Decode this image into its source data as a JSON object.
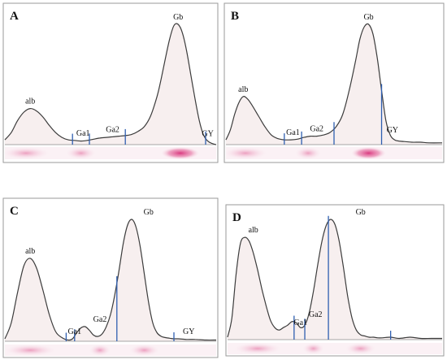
{
  "chart_data": [
    {
      "type": "line",
      "panel": "A",
      "x": [
        0,
        0.03,
        0.06,
        0.09,
        0.12,
        0.15,
        0.18,
        0.21,
        0.24,
        0.27,
        0.3,
        0.33,
        0.36,
        0.39,
        0.42,
        0.45,
        0.48,
        0.51,
        0.54,
        0.57,
        0.6,
        0.63,
        0.66,
        0.69,
        0.72,
        0.74,
        0.76,
        0.78,
        0.8,
        0.82,
        0.84,
        0.86,
        0.88,
        0.9,
        0.92,
        0.94,
        0.96,
        0.98,
        1.0
      ],
      "y": [
        0.04,
        0.1,
        0.2,
        0.27,
        0.3,
        0.28,
        0.23,
        0.16,
        0.1,
        0.06,
        0.04,
        0.035,
        0.03,
        0.035,
        0.045,
        0.055,
        0.06,
        0.065,
        0.07,
        0.075,
        0.085,
        0.11,
        0.15,
        0.24,
        0.4,
        0.55,
        0.72,
        0.88,
        0.99,
        1.0,
        0.93,
        0.78,
        0.58,
        0.38,
        0.2,
        0.08,
        0.03,
        0.01,
        0.0
      ],
      "dividers": [
        0.32,
        0.4,
        0.57,
        0.95
      ],
      "labels": [
        {
          "text": "alb",
          "x": 0.12,
          "y": 0.3
        },
        {
          "text": "Ga1",
          "x": 0.37,
          "y": 0.035
        },
        {
          "text": "Ga2",
          "x": 0.51,
          "y": 0.065
        },
        {
          "text": "Gb",
          "x": 0.82,
          "y": 1.0
        },
        {
          "text": "GY",
          "x": 0.96,
          "y": 0.03
        }
      ]
    },
    {
      "type": "line",
      "panel": "B",
      "x": [
        0,
        0.02,
        0.04,
        0.06,
        0.08,
        0.1,
        0.12,
        0.15,
        0.18,
        0.21,
        0.24,
        0.27,
        0.3,
        0.33,
        0.36,
        0.39,
        0.42,
        0.45,
        0.48,
        0.51,
        0.54,
        0.57,
        0.6,
        0.62,
        0.64,
        0.66,
        0.68,
        0.7,
        0.72,
        0.74,
        0.76,
        0.78,
        0.8,
        0.83,
        0.86,
        0.9,
        0.94,
        1.0
      ],
      "y": [
        0.04,
        0.12,
        0.25,
        0.35,
        0.4,
        0.38,
        0.33,
        0.24,
        0.15,
        0.08,
        0.05,
        0.04,
        0.04,
        0.045,
        0.06,
        0.07,
        0.07,
        0.08,
        0.1,
        0.15,
        0.25,
        0.45,
        0.7,
        0.88,
        0.98,
        1.0,
        0.92,
        0.72,
        0.45,
        0.2,
        0.08,
        0.04,
        0.03,
        0.025,
        0.02,
        0.02,
        0.015,
        0.015
      ],
      "dividers": [
        0.27,
        0.35,
        0.5,
        0.72
      ],
      "labels": [
        {
          "text": "alb",
          "x": 0.08,
          "y": 0.4
        },
        {
          "text": "Ga1",
          "x": 0.31,
          "y": 0.04
        },
        {
          "text": "Ga2",
          "x": 0.42,
          "y": 0.07
        },
        {
          "text": "Gb",
          "x": 0.66,
          "y": 1.0
        },
        {
          "text": "GY",
          "x": 0.77,
          "y": 0.06
        }
      ]
    },
    {
      "type": "line",
      "panel": "C",
      "x": [
        0,
        0.03,
        0.06,
        0.09,
        0.12,
        0.15,
        0.18,
        0.21,
        0.24,
        0.27,
        0.3,
        0.32,
        0.34,
        0.36,
        0.38,
        0.4,
        0.42,
        0.44,
        0.46,
        0.48,
        0.5,
        0.52,
        0.54,
        0.56,
        0.58,
        0.6,
        0.62,
        0.64,
        0.66,
        0.68,
        0.7,
        0.72,
        0.74,
        0.76,
        0.78,
        0.8,
        0.82,
        0.86,
        0.9,
        0.95,
        1.0
      ],
      "y": [
        0.02,
        0.15,
        0.4,
        0.62,
        0.68,
        0.6,
        0.42,
        0.22,
        0.08,
        0.03,
        0.01,
        0.02,
        0.07,
        0.11,
        0.12,
        0.09,
        0.05,
        0.04,
        0.06,
        0.12,
        0.22,
        0.38,
        0.58,
        0.8,
        0.95,
        1.0,
        0.94,
        0.78,
        0.55,
        0.32,
        0.15,
        0.07,
        0.04,
        0.03,
        0.025,
        0.02,
        0.02,
        0.015,
        0.015,
        0.01,
        0.01
      ],
      "dividers": [
        0.29,
        0.33,
        0.53,
        0.8
      ],
      "labels": [
        {
          "text": "alb",
          "x": 0.12,
          "y": 0.68
        },
        {
          "text": "Ga1",
          "x": 0.33,
          "y": 0.02
        },
        {
          "text": "Ga2",
          "x": 0.45,
          "y": 0.12
        },
        {
          "text": "Gb",
          "x": 0.68,
          "y": 1.0
        },
        {
          "text": "GY",
          "x": 0.87,
          "y": 0.02
        }
      ]
    },
    {
      "type": "line",
      "panel": "D",
      "x": [
        0,
        0.02,
        0.04,
        0.06,
        0.08,
        0.1,
        0.12,
        0.14,
        0.16,
        0.18,
        0.2,
        0.22,
        0.24,
        0.26,
        0.28,
        0.3,
        0.32,
        0.34,
        0.36,
        0.38,
        0.4,
        0.42,
        0.44,
        0.46,
        0.48,
        0.5,
        0.52,
        0.54,
        0.56,
        0.58,
        0.6,
        0.62,
        0.64,
        0.66,
        0.68,
        0.7,
        0.72,
        0.76,
        0.8,
        0.85,
        0.9,
        0.95,
        1.0
      ],
      "y": [
        0.02,
        0.18,
        0.55,
        0.8,
        0.85,
        0.82,
        0.72,
        0.58,
        0.42,
        0.28,
        0.16,
        0.1,
        0.08,
        0.1,
        0.12,
        0.15,
        0.14,
        0.1,
        0.12,
        0.22,
        0.4,
        0.62,
        0.82,
        0.95,
        1.0,
        0.96,
        0.82,
        0.6,
        0.36,
        0.18,
        0.08,
        0.04,
        0.03,
        0.02,
        0.02,
        0.015,
        0.015,
        0.02,
        0.01,
        0.02,
        0.01,
        0.01,
        0.01
      ],
      "dividers": [
        0.31,
        0.36,
        0.47,
        0.76
      ],
      "labels": [
        {
          "text": "alb",
          "x": 0.12,
          "y": 0.85
        },
        {
          "text": "Ga1",
          "x": 0.34,
          "y": 0.08
        },
        {
          "text": "Ga2",
          "x": 0.41,
          "y": 0.15
        },
        {
          "text": "Gb",
          "x": 0.62,
          "y": 1.0
        }
      ]
    }
  ],
  "colors": {
    "band": "#d8307a",
    "divider": "#2f5fb0",
    "curve": "#3c3c3c",
    "fill": "#f7efef"
  }
}
